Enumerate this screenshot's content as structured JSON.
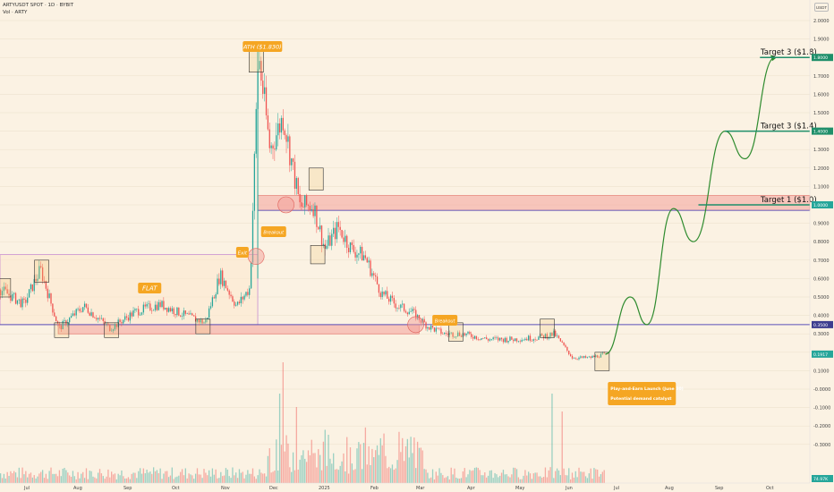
{
  "header": {
    "symbol_line": "ARTYUSDT SPOT · 1D · BYBIT",
    "volume_line": "Vol · ARTY"
  },
  "currency": "USDT",
  "colors": {
    "background": "#fbf2e3",
    "up": "#26a69a",
    "down": "#ef5350",
    "zone_fill": "#f4a09a",
    "zone_stroke": "#e0605a",
    "flat_box": "#c88fd0",
    "support_line": "#5a4fb8",
    "label_orange": "#f5a623",
    "projection": "#2e8b2e",
    "target_line": "#1f8f6a"
  },
  "price_axis": {
    "ticks": [
      "2.0000",
      "1.9000",
      "1.8000",
      "1.7000",
      "1.6000",
      "1.5000",
      "1.4000",
      "1.3000",
      "1.2000",
      "1.1000",
      "1.0000",
      "0.9000",
      "0.8000",
      "0.7000",
      "0.6000",
      "0.5000",
      "0.4000",
      "0.3000",
      "0.2000",
      "0.1000",
      "-0.0000",
      "-0.1000",
      "-0.2000",
      "-0.3000"
    ],
    "markers": [
      {
        "label": "1.8000",
        "color": "#1f8f6a"
      },
      {
        "label": "1.4000",
        "color": "#1f8f6a"
      },
      {
        "label": "1.0000",
        "color": "#26a69a"
      },
      {
        "label": "0.3500",
        "color": "#3d3d8f"
      },
      {
        "label": "0.1917",
        "color": "#26a69a"
      },
      {
        "label": "74.97K",
        "color": "#26a69a"
      }
    ]
  },
  "time_axis": {
    "ticks": [
      "Jul",
      "Aug",
      "Sep",
      "Oct",
      "Nov",
      "Dec",
      "2025",
      "Feb",
      "Mar",
      "Apr",
      "May",
      "Jun",
      "Jul",
      "Aug",
      "Sep",
      "Oct"
    ]
  },
  "annotations": {
    "ath": "ATH ($1.830)",
    "flat": "FLAT",
    "exit": "Exit",
    "breakout1": "Breakout",
    "breakout2": "Breakout",
    "catalyst_line1": "Play-and-Earn Launch (June 30)",
    "catalyst_line2": "Potential demand catalyst",
    "target1": "Target 1 ($1.0)",
    "target2": "Target 3 ($1.4)",
    "target3": "Target 3 ($1.8)"
  },
  "chart_data": {
    "type": "candlestick",
    "x_range": [
      "2024-07-01",
      "2025-10-31"
    ],
    "ylim": [
      -0.38,
      2.08
    ],
    "price_series": {
      "name": "ARTYUSDT",
      "dates": [
        "2024-07-01",
        "2024-07-15",
        "2024-07-25",
        "2024-08-05",
        "2024-08-20",
        "2024-09-05",
        "2024-09-20",
        "2024-10-05",
        "2024-10-20",
        "2024-11-01",
        "2024-11-10",
        "2024-11-20",
        "2024-11-28",
        "2024-12-03",
        "2024-12-10",
        "2024-12-18",
        "2024-12-28",
        "2025-01-05",
        "2025-01-12",
        "2025-01-20",
        "2025-01-28",
        "2025-02-05",
        "2025-02-15",
        "2025-02-25",
        "2025-03-05",
        "2025-03-15",
        "2025-03-25",
        "2025-04-05",
        "2025-04-20",
        "2025-05-05",
        "2025-05-20",
        "2025-05-30",
        "2025-06-10",
        "2025-06-20",
        "2025-06-30"
      ],
      "close": [
        0.54,
        0.46,
        0.65,
        0.33,
        0.45,
        0.33,
        0.42,
        0.46,
        0.4,
        0.36,
        0.62,
        0.45,
        0.55,
        1.83,
        1.3,
        1.48,
        0.99,
        1.0,
        0.76,
        0.88,
        0.76,
        0.72,
        0.52,
        0.45,
        0.42,
        0.34,
        0.3,
        0.3,
        0.27,
        0.27,
        0.28,
        0.3,
        0.17,
        0.17,
        0.19
      ]
    },
    "projection": {
      "name": "Projected path",
      "points": [
        {
          "date": "2025-06-30",
          "price": 0.19
        },
        {
          "date": "2025-07-15",
          "price": 0.5
        },
        {
          "date": "2025-07-25",
          "price": 0.35
        },
        {
          "date": "2025-08-10",
          "price": 0.98
        },
        {
          "date": "2025-08-22",
          "price": 0.8
        },
        {
          "date": "2025-09-10",
          "price": 1.4
        },
        {
          "date": "2025-09-22",
          "price": 1.25
        },
        {
          "date": "2025-10-10",
          "price": 1.8
        }
      ]
    },
    "zones": [
      {
        "name": "Resistance zone",
        "from": "2024-12-03",
        "to": "2025-10-31",
        "low": 0.97,
        "high": 1.05
      },
      {
        "name": "Support zone",
        "from": "2024-08-05",
        "to": "2025-03-10",
        "low": 0.3,
        "high": 0.35
      }
    ],
    "flat_range": {
      "from": "2024-07-01",
      "to": "2024-12-03",
      "low": 0.35,
      "high": 0.73
    },
    "support_line": 0.35,
    "targets": [
      1.0,
      1.4,
      1.8
    ],
    "volume": {
      "name": "Vol",
      "last": "74.97K"
    }
  }
}
